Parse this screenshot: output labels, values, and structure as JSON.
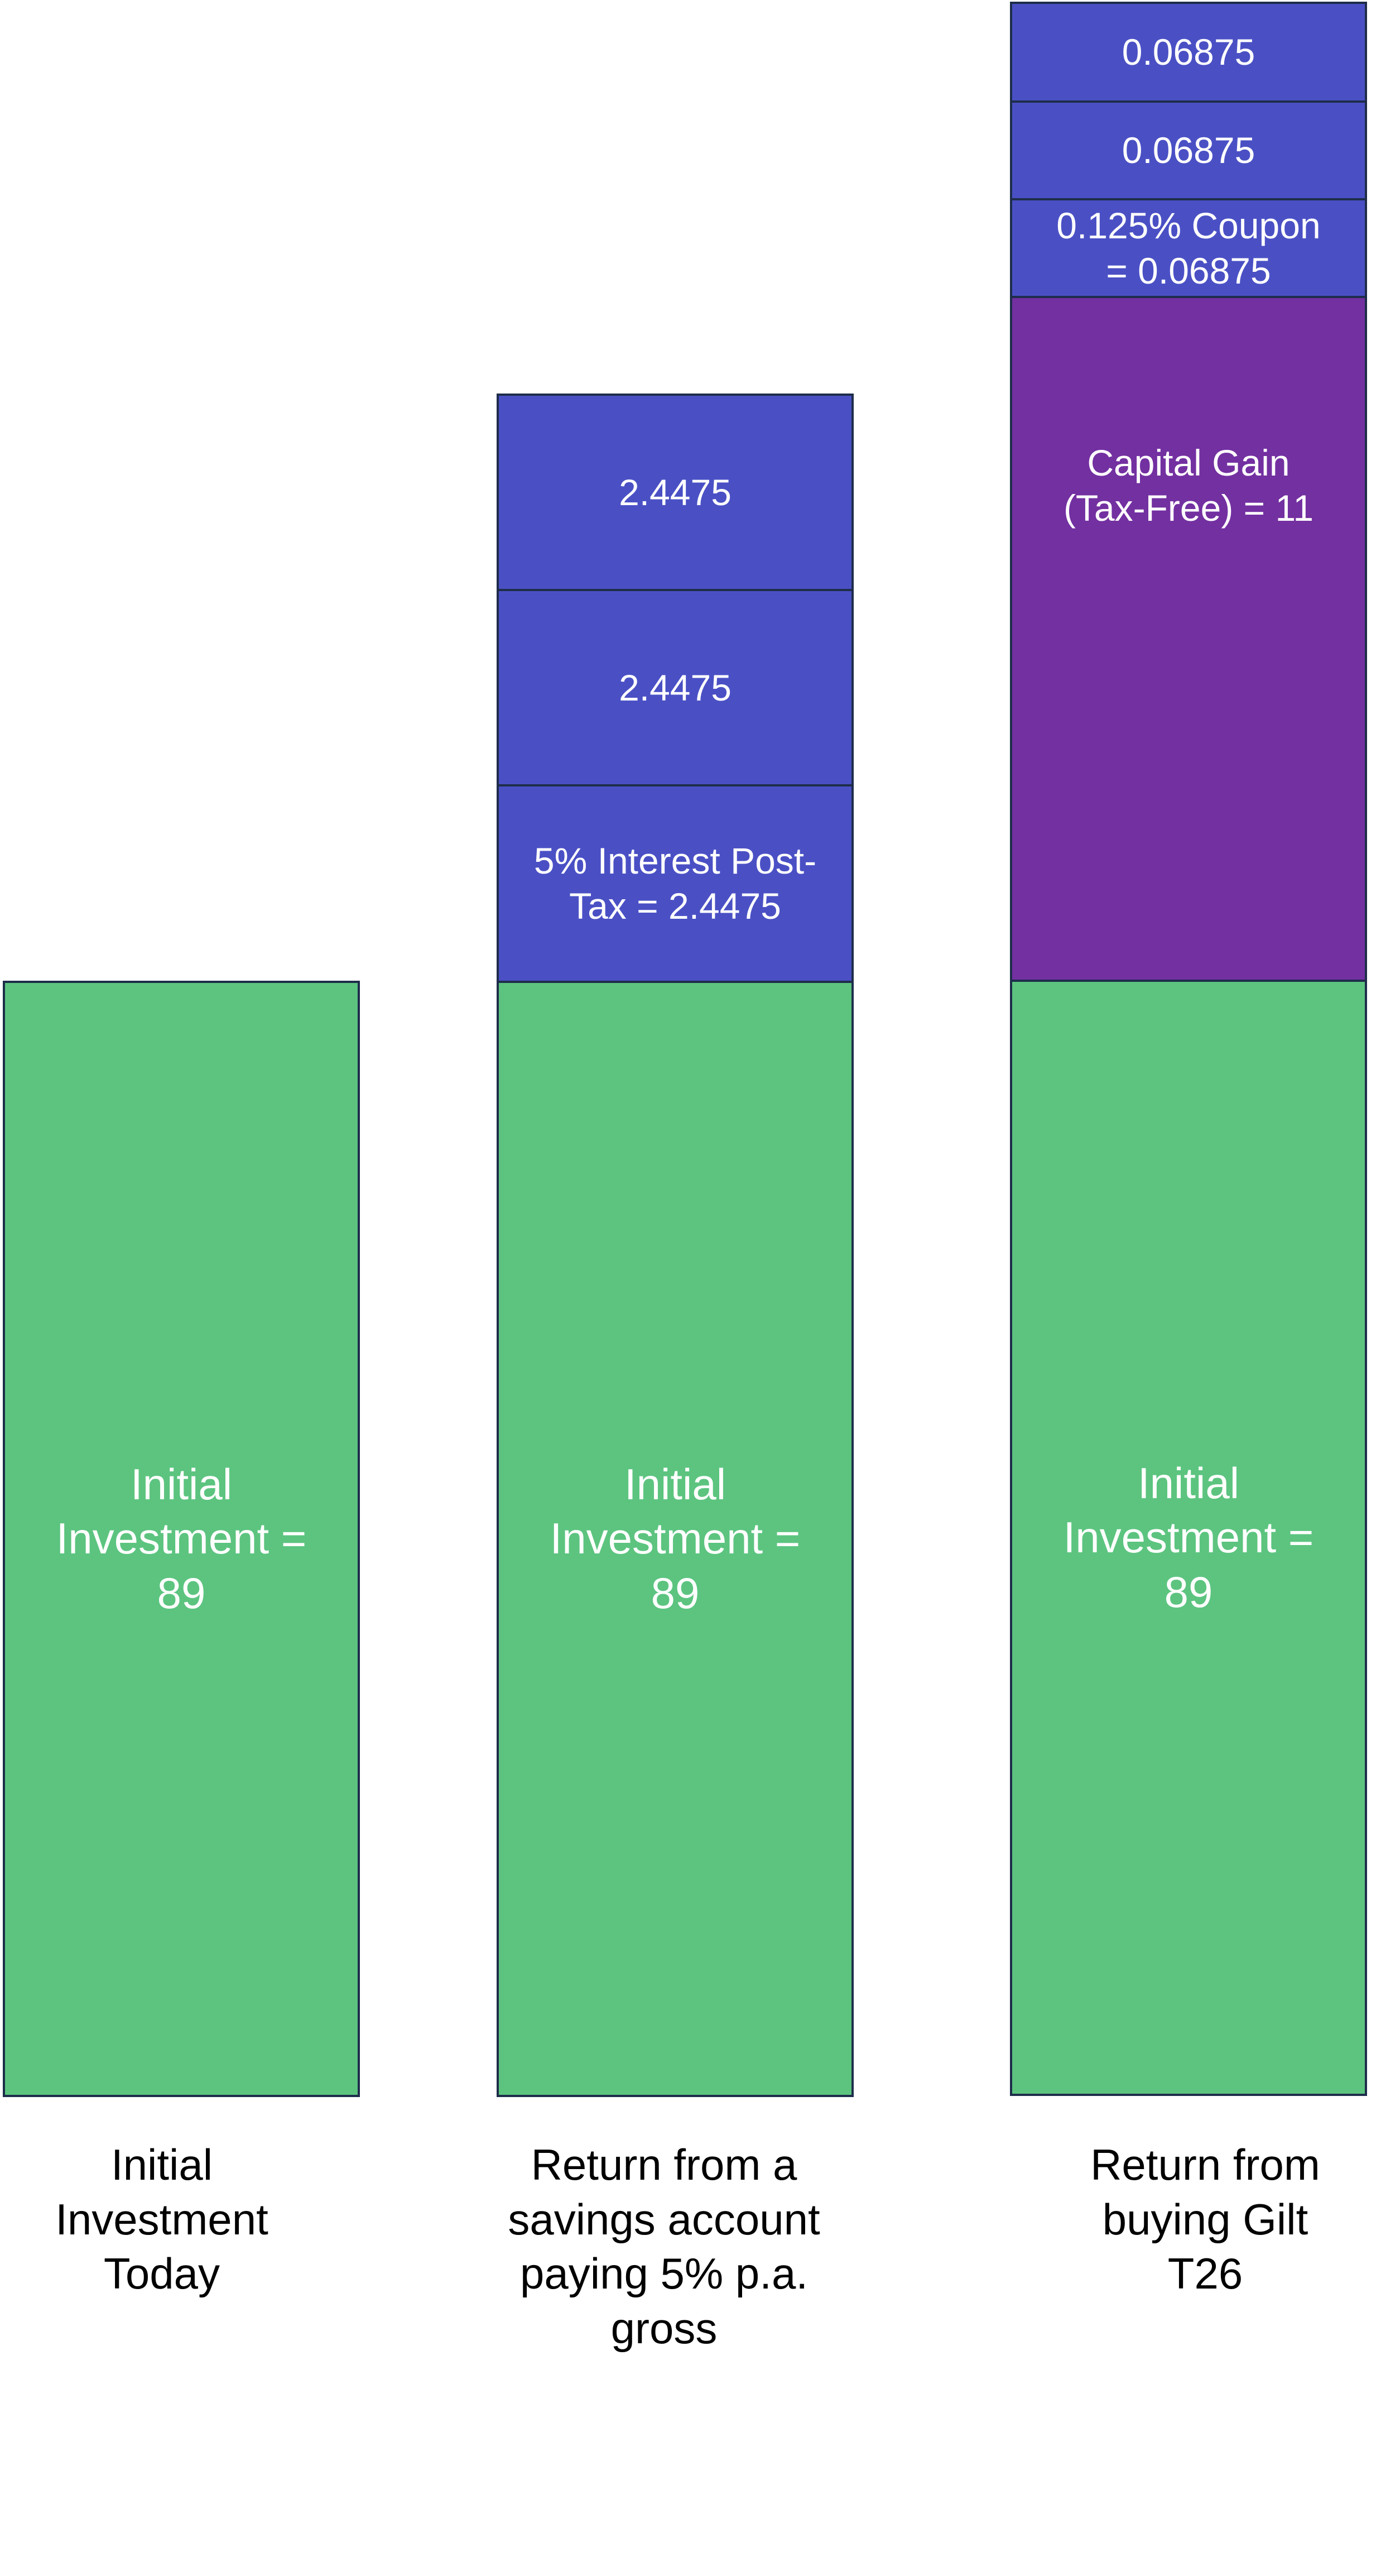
{
  "colors": {
    "principal": "#5cc47f",
    "interest": "#4a50c4",
    "capital_gain": "#7330a1",
    "border": "#1e2d4a"
  },
  "columns": [
    {
      "caption": "Initial\nInvestment\nToday",
      "blocks": [
        {
          "label": "Initial\nInvestment =\n89",
          "kind": "principal"
        }
      ]
    },
    {
      "caption": "Return from a\nsavings account\npaying 5% p.a.\ngross",
      "blocks": [
        {
          "label": "Initial\nInvestment =\n89",
          "kind": "principal"
        },
        {
          "label": "5% Interest Post-\nTax = 2.4475",
          "kind": "interest"
        },
        {
          "label": "2.4475",
          "kind": "interest"
        },
        {
          "label": "2.4475",
          "kind": "interest"
        }
      ]
    },
    {
      "caption": "Return from\nbuying Gilt\nT26",
      "blocks": [
        {
          "label": "Initial\nInvestment =\n89",
          "kind": "principal"
        },
        {
          "label": "Capital Gain\n(Tax-Free) = 11",
          "kind": "capital_gain"
        },
        {
          "label": "0.125% Coupon\n= 0.06875",
          "kind": "interest"
        },
        {
          "label": "0.06875",
          "kind": "interest"
        },
        {
          "label": "0.06875",
          "kind": "interest"
        }
      ]
    }
  ]
}
